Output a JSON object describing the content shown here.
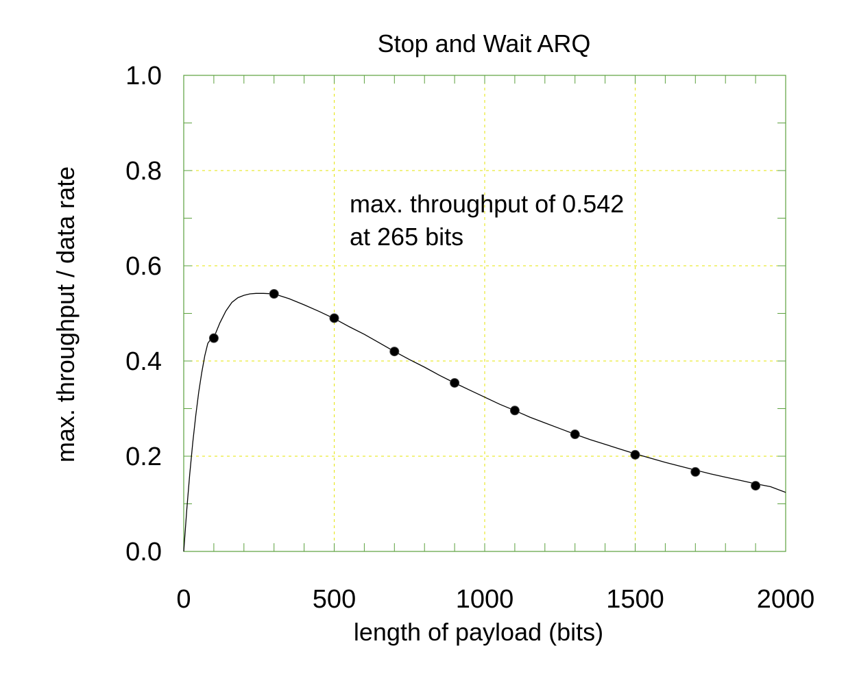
{
  "chart_data": {
    "type": "line",
    "title": "Stop and Wait ARQ",
    "xlabel": "length of payload (bits)",
    "ylabel": "max. throughput / data rate",
    "xlim": [
      0,
      2000
    ],
    "ylim": [
      0,
      1.0
    ],
    "x_ticks": [
      0,
      500,
      1000,
      1500,
      2000
    ],
    "y_ticks": [
      0.0,
      0.2,
      0.4,
      0.6,
      0.8,
      1.0
    ],
    "x_tick_labels": [
      "0",
      "500",
      "1000",
      "1500",
      "2000"
    ],
    "y_tick_labels": [
      "0.0",
      "0.2",
      "0.4",
      "0.6",
      "0.8",
      "1.0"
    ],
    "grid": true,
    "colors": {
      "frame": "#5aa03c",
      "grid": "#e4e400",
      "curve": "#000000",
      "points": "#000000"
    },
    "series": [
      {
        "style": "line",
        "x": [
          0,
          10,
          20,
          30,
          40,
          50,
          60,
          70,
          80,
          90,
          100,
          120,
          140,
          160,
          180,
          200,
          220,
          240,
          265,
          300,
          350,
          400,
          450,
          500,
          550,
          600,
          650,
          700,
          750,
          800,
          850,
          900,
          950,
          1000,
          1050,
          1100,
          1150,
          1200,
          1250,
          1300,
          1350,
          1400,
          1450,
          1500,
          1550,
          1600,
          1650,
          1700,
          1750,
          1800,
          1850,
          1900,
          1950,
          2000
        ],
        "y": [
          0.0,
          0.087,
          0.163,
          0.229,
          0.286,
          0.335,
          0.376,
          0.411,
          0.437,
          0.446,
          0.449,
          0.48,
          0.505,
          0.523,
          0.533,
          0.538,
          0.541,
          0.542,
          0.542,
          0.541,
          0.531,
          0.518,
          0.504,
          0.489,
          0.472,
          0.456,
          0.438,
          0.42,
          0.403,
          0.387,
          0.37,
          0.354,
          0.339,
          0.324,
          0.309,
          0.296,
          0.282,
          0.27,
          0.258,
          0.246,
          0.235,
          0.225,
          0.215,
          0.205,
          0.196,
          0.187,
          0.179,
          0.171,
          0.163,
          0.156,
          0.149,
          0.142,
          0.136,
          0.124
        ]
      },
      {
        "style": "points",
        "x": [
          100,
          300,
          500,
          700,
          900,
          1100,
          1300,
          1500,
          1700,
          1900
        ],
        "y": [
          0.448,
          0.541,
          0.49,
          0.42,
          0.354,
          0.296,
          0.246,
          0.203,
          0.167,
          0.138
        ]
      }
    ],
    "annotation": {
      "line1": "max. throughput of 0.542",
      "line2": "at 265 bits"
    }
  }
}
